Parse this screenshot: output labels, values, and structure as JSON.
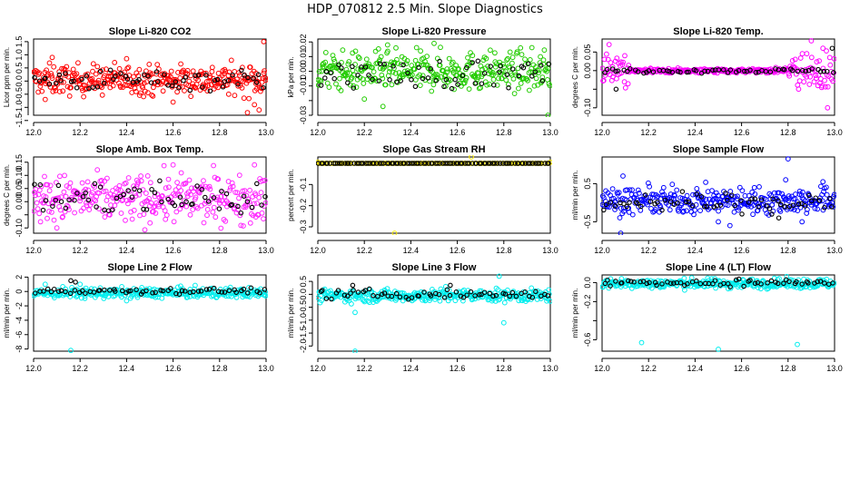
{
  "figure_title": "HDP_070812  2.5 Min. Slope Diagnostics",
  "chart_data": [
    {
      "type": "scatter",
      "title": "Slope Li-820 CO2",
      "ylabel": "Licor ppm per min.",
      "xlabel": "",
      "color": "#ff0000",
      "xlim": [
        12.0,
        13.0
      ],
      "x_ticks": [
        "12.0",
        "12.2",
        "12.4",
        "12.6",
        "12.8",
        "13.0"
      ],
      "ylim": [
        -1.3,
        1.6
      ],
      "y_ticks": [
        -1.5,
        -1.0,
        -0.5,
        0.0,
        0.5,
        1.0,
        1.5
      ],
      "y_tick_labels": [
        "-1.5",
        "-1.0",
        "-0.5",
        "0.0",
        "0.5",
        "1.0",
        "1.5"
      ],
      "series": [
        {
          "name": "all",
          "color": "#ff0000",
          "spread": 0.28,
          "center": 0.05,
          "count": 340,
          "outliers": [
            [
              12.05,
              -0.7
            ],
            [
              12.08,
              0.9
            ],
            [
              12.92,
              -1.2
            ],
            [
              12.95,
              -0.9
            ],
            [
              12.97,
              -1.1
            ],
            [
              12.99,
              1.5
            ],
            [
              12.6,
              -0.8
            ],
            [
              12.4,
              0.85
            ]
          ]
        },
        {
          "name": "selected",
          "color": "#000000",
          "spread": 0.2,
          "center": 0.05,
          "count": 60,
          "outliers": []
        }
      ]
    },
    {
      "type": "scatter",
      "title": "Slope Li-820 Pressure",
      "ylabel": "kPa per min.",
      "xlabel": "",
      "color": "#00cc00",
      "xlim": [
        12.0,
        13.0
      ],
      "x_ticks": [
        "12.0",
        "12.2",
        "12.4",
        "12.6",
        "12.8",
        "13.0"
      ],
      "ylim": [
        -0.03,
        0.022
      ],
      "y_ticks": [
        -0.03,
        -0.02,
        -0.01,
        0.0,
        0.01,
        0.02
      ],
      "y_tick_labels": [
        "-0.03",
        "",
        "-0.01",
        "0.00",
        "0.01",
        "0.02"
      ],
      "series": [
        {
          "name": "all",
          "color": "#22cc00",
          "spread": 0.0065,
          "center": 0.0,
          "count": 340,
          "outliers": [
            [
              12.28,
              -0.024
            ],
            [
              12.3,
              0.018
            ],
            [
              12.5,
              0.019
            ],
            [
              12.99,
              -0.03
            ],
            [
              12.2,
              -0.019
            ]
          ]
        },
        {
          "name": "selected",
          "color": "#000000",
          "spread": 0.005,
          "center": -0.002,
          "count": 60,
          "outliers": []
        }
      ]
    },
    {
      "type": "scatter",
      "title": "Slope Li-820 Temp.",
      "ylabel": "degrees C per min.",
      "xlabel": "",
      "color": "#ff00ff",
      "xlim": [
        12.0,
        13.0
      ],
      "x_ticks": [
        "12.0",
        "12.2",
        "12.4",
        "12.6",
        "12.8",
        "13.0"
      ],
      "ylim": [
        -0.12,
        0.085
      ],
      "y_ticks": [
        -0.1,
        -0.05,
        0.0,
        0.05
      ],
      "y_tick_labels": [
        "-0.10",
        "",
        "0.00",
        "0.05"
      ],
      "series": [
        {
          "name": "all",
          "color": "#ff00ff",
          "spread": 0.004,
          "center": 0.0,
          "count": 300,
          "outliers": [
            [
              12.03,
              0.07
            ],
            [
              12.9,
              0.08
            ],
            [
              12.97,
              -0.1
            ],
            [
              12.95,
              0.06
            ]
          ]
        },
        {
          "name": "selected",
          "color": "#000000",
          "spread": 0.003,
          "center": 0.0,
          "count": 60,
          "outliers": [
            [
              12.06,
              -0.05
            ],
            [
              12.99,
              0.06
            ]
          ]
        }
      ]
    },
    {
      "type": "scatter",
      "title": "Slope Amb. Box Temp.",
      "ylabel": "degrees C per min.",
      "xlabel": "",
      "color": "#ff00ff",
      "xlim": [
        12.0,
        13.0
      ],
      "x_ticks": [
        "12.0",
        "12.2",
        "12.4",
        "12.6",
        "12.8",
        "13.0"
      ],
      "ylim": [
        -0.12,
        0.17
      ],
      "y_ticks": [
        -0.1,
        -0.05,
        0.0,
        0.05,
        0.1,
        0.15
      ],
      "y_tick_labels": [
        "-0.10",
        "",
        "0.00",
        "0.05",
        "0.10",
        "0.15"
      ],
      "series": [
        {
          "name": "all",
          "color": "#ff22ff",
          "spread": 0.045,
          "center": 0.01,
          "count": 320,
          "outliers": [
            [
              12.6,
              0.14
            ],
            [
              12.95,
              0.14
            ],
            [
              12.1,
              -0.1
            ]
          ]
        },
        {
          "name": "selected",
          "color": "#000000",
          "spread": 0.035,
          "center": 0.01,
          "count": 60,
          "outliers": []
        }
      ]
    },
    {
      "type": "scatter",
      "title": "Slope Gas Stream RH",
      "ylabel": "percent per min.",
      "xlabel": "",
      "color": "#ffee00",
      "xlim": [
        12.0,
        13.0
      ],
      "x_ticks": [
        "12.0",
        "12.2",
        "12.4",
        "12.6",
        "12.8",
        "13.0"
      ],
      "ylim": [
        -0.33,
        0.03
      ],
      "y_ticks": [
        -0.3,
        -0.2,
        -0.1
      ],
      "y_tick_labels": [
        "-0.3",
        "-0.2",
        "-0.1"
      ],
      "series": [
        {
          "name": "all",
          "color": "#ffee00",
          "spread": 0.0,
          "center": 0.0,
          "count": 130,
          "outliers": [
            [
              12.66,
              0.03
            ],
            [
              12.33,
              -0.33
            ],
            [
              12.0,
              0.005
            ],
            [
              13.0,
              0.005
            ]
          ]
        },
        {
          "name": "selected",
          "color": "#000000",
          "spread": 0.0,
          "center": 0.0,
          "count": 100,
          "outliers": []
        }
      ]
    },
    {
      "type": "scatter",
      "title": "Slope Sample Flow",
      "ylabel": "ml/min per min.",
      "xlabel": "",
      "color": "#0000ff",
      "xlim": [
        12.0,
        13.0
      ],
      "x_ticks": [
        "12.0",
        "12.2",
        "12.4",
        "12.6",
        "12.8",
        "13.0"
      ],
      "ylim": [
        -0.8,
        1.2
      ],
      "y_ticks": [
        -0.5,
        0.5
      ],
      "y_tick_labels": [
        "-0.5",
        "0.5"
      ],
      "series": [
        {
          "name": "all",
          "color": "#0000ff",
          "spread": 0.17,
          "center": 0.05,
          "count": 320,
          "outliers": [
            [
              12.09,
              0.7
            ],
            [
              12.08,
              -0.8
            ],
            [
              12.8,
              1.15
            ],
            [
              12.79,
              0.6
            ],
            [
              12.5,
              -0.5
            ],
            [
              12.55,
              -0.6
            ],
            [
              12.86,
              -0.5
            ],
            [
              12.95,
              0.55
            ]
          ]
        },
        {
          "name": "selected",
          "color": "#000000",
          "spread": 0.13,
          "center": 0.0,
          "count": 60,
          "outliers": [
            [
              12.73,
              -0.3
            ],
            [
              12.76,
              -0.4
            ]
          ]
        }
      ]
    },
    {
      "type": "scatter",
      "title": "Slope Line 2 Flow",
      "ylabel": "ml/min per min.",
      "xlabel": "",
      "color": "#00ffff",
      "xlim": [
        12.0,
        13.0
      ],
      "x_ticks": [
        "12.0",
        "12.2",
        "12.4",
        "12.6",
        "12.8",
        "13.0"
      ],
      "ylim": [
        -8.3,
        2.3
      ],
      "y_ticks": [
        -8,
        -6,
        -4,
        -2,
        0,
        2
      ],
      "y_tick_labels": [
        "-8",
        "-6",
        "-4",
        "-2",
        "0",
        "2"
      ],
      "series": [
        {
          "name": "all",
          "color": "#00eeee",
          "spread": 0.35,
          "center": -0.2,
          "count": 330,
          "outliers": [
            [
              12.16,
              -8.2
            ],
            [
              12.05,
              1.0
            ],
            [
              12.2,
              1.0
            ],
            [
              12.4,
              -1.3
            ]
          ]
        },
        {
          "name": "selected",
          "color": "#000000",
          "spread": 0.2,
          "center": 0.1,
          "count": 60,
          "outliers": [
            [
              12.16,
              1.5
            ],
            [
              12.18,
              1.3
            ]
          ]
        }
      ]
    },
    {
      "type": "scatter",
      "title": "Slope Line 3 Flow",
      "ylabel": "ml/min per min.",
      "xlabel": "",
      "color": "#00ffff",
      "xlim": [
        12.0,
        13.0
      ],
      "x_ticks": [
        "12.0",
        "12.2",
        "12.4",
        "12.6",
        "12.8",
        "13.0"
      ],
      "ylim": [
        -2.2,
        0.75
      ],
      "y_ticks": [
        -2.0,
        -1.5,
        -1.0,
        -0.5,
        0.0,
        0.5
      ],
      "y_tick_labels": [
        "-2.0",
        "-1.5",
        "-1.0",
        "-0.5",
        "0.0",
        "0.5"
      ],
      "series": [
        {
          "name": "all",
          "color": "#00eeee",
          "spread": 0.12,
          "center": -0.05,
          "count": 330,
          "outliers": [
            [
              12.16,
              -2.2
            ],
            [
              12.16,
              -0.7
            ],
            [
              12.8,
              -1.1
            ],
            [
              12.78,
              0.7
            ],
            [
              12.55,
              0.3
            ]
          ]
        },
        {
          "name": "selected",
          "color": "#000000",
          "spread": 0.09,
          "center": 0.0,
          "count": 60,
          "outliers": [
            [
              12.15,
              0.35
            ],
            [
              12.57,
              0.35
            ]
          ]
        }
      ]
    },
    {
      "type": "scatter",
      "title": "Slope Line 4 (LT) Flow",
      "ylabel": "ml/min per min.",
      "xlabel": "",
      "color": "#00ffff",
      "xlim": [
        12.0,
        13.0
      ],
      "x_ticks": [
        "12.0",
        "12.2",
        "12.4",
        "12.6",
        "12.8",
        "13.0"
      ],
      "ylim": [
        -0.72,
        0.08
      ],
      "y_ticks": [
        -0.6,
        -0.4,
        -0.2,
        0.0
      ],
      "y_tick_labels": [
        "-0.6",
        "",
        "-0.2",
        "0.0"
      ],
      "series": [
        {
          "name": "all",
          "color": "#00eeee",
          "spread": 0.025,
          "center": -0.01,
          "count": 330,
          "outliers": [
            [
              12.17,
              -0.63
            ],
            [
              12.5,
              -0.7
            ],
            [
              12.84,
              -0.65
            ]
          ]
        },
        {
          "name": "selected",
          "color": "#000000",
          "spread": 0.018,
          "center": 0.0,
          "count": 60,
          "outliers": []
        }
      ]
    }
  ]
}
